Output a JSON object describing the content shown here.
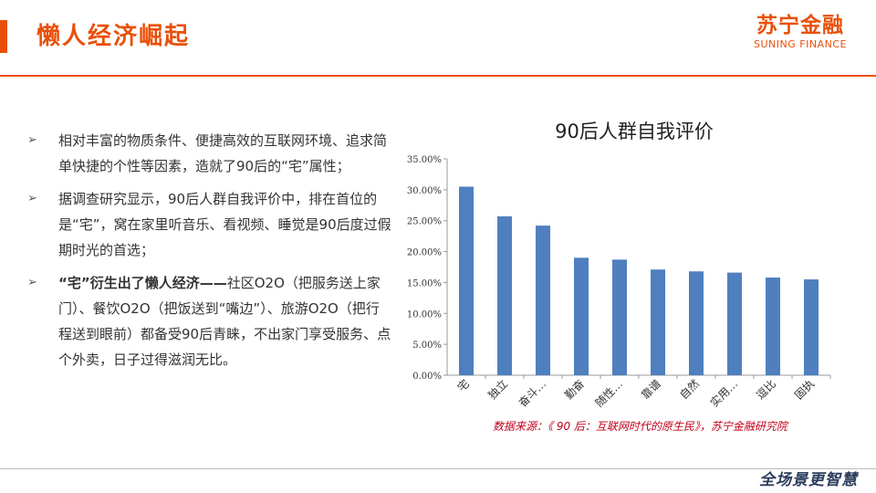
{
  "header": {
    "title": "懒人经济崛起",
    "logo_cn": "苏宁金融",
    "logo_en": "SUNING FINANCE"
  },
  "bullets": [
    {
      "text": "相对丰富的物质条件、便捷高效的互联网环境、追求简单快捷的个性等因素，造就了90后的“宅”属性；"
    },
    {
      "text": "据调查研究显示，90后人群自我评价中，排在首位的是“宅”，窝在家里听音乐、看视频、睡觉是90后度过假期时光的首选；"
    },
    {
      "bold": "“宅”衍生出了懒人经济——",
      "text": "社区O2O（把服务送上家门）、餐饮O2O（把饭送到“嘴边”）、旅游O2O（把行程送到眼前）都备受90后青睐，不出家门享受服务、点个外卖，日子过得滋润无比。"
    }
  ],
  "chart_data": {
    "type": "bar",
    "title": "90后人群自我评价",
    "categories": [
      "宅",
      "独立",
      "奋斗…",
      "勤奋",
      "随性…",
      "靠谱",
      "自然",
      "实用…",
      "逗比",
      "固执"
    ],
    "values": [
      30.5,
      25.7,
      24.2,
      19.0,
      18.7,
      17.1,
      16.8,
      16.6,
      15.8,
      15.5
    ],
    "ylim": [
      0,
      35
    ],
    "yticks": [
      "0.00%",
      "5.00%",
      "10.00%",
      "15.00%",
      "20.00%",
      "25.00%",
      "30.00%",
      "35.00%"
    ],
    "bar_color": "#4f7fbf",
    "legend": "none",
    "grid": false
  },
  "source": "数据来源：《 90 后：互联网时代的原生民》，苏宁金融研究院",
  "footer": {
    "brand": "全场景更智慧"
  }
}
